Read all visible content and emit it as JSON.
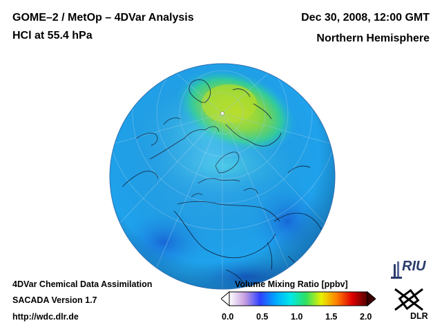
{
  "header": {
    "title_line1": "GOME–2 / MetOp – 4DVar Analysis",
    "title_line2": "HCl at 55.4 hPa",
    "date": "Dec 30, 2008, 12:00 GMT",
    "hemisphere": "Northern Hemisphere"
  },
  "footer": {
    "line1": "4DVar Chemical Data Assimilation",
    "line2": "SACADA Version 1.7",
    "line3": "http://wdc.dlr.de"
  },
  "colorbar": {
    "title": "Volume Mixing Ratio [ppbv]",
    "ticks": [
      "0.0",
      "0.5",
      "1.0",
      "1.5",
      "2.0"
    ],
    "min": 0.0,
    "max": 2.0,
    "colors": [
      "#ffffff",
      "#c8a0e0",
      "#3040ff",
      "#00a8ff",
      "#00e8e8",
      "#30e060",
      "#e8f000",
      "#ff8000",
      "#e00000",
      "#500000"
    ]
  },
  "map": {
    "projection": "orthographic, north pole view",
    "field_colors": {
      "background": "#1fa2ec",
      "high": "#a8e030",
      "low": "#1878e0"
    }
  },
  "logos": {
    "riu": "RIU",
    "dlr": "DLR"
  }
}
